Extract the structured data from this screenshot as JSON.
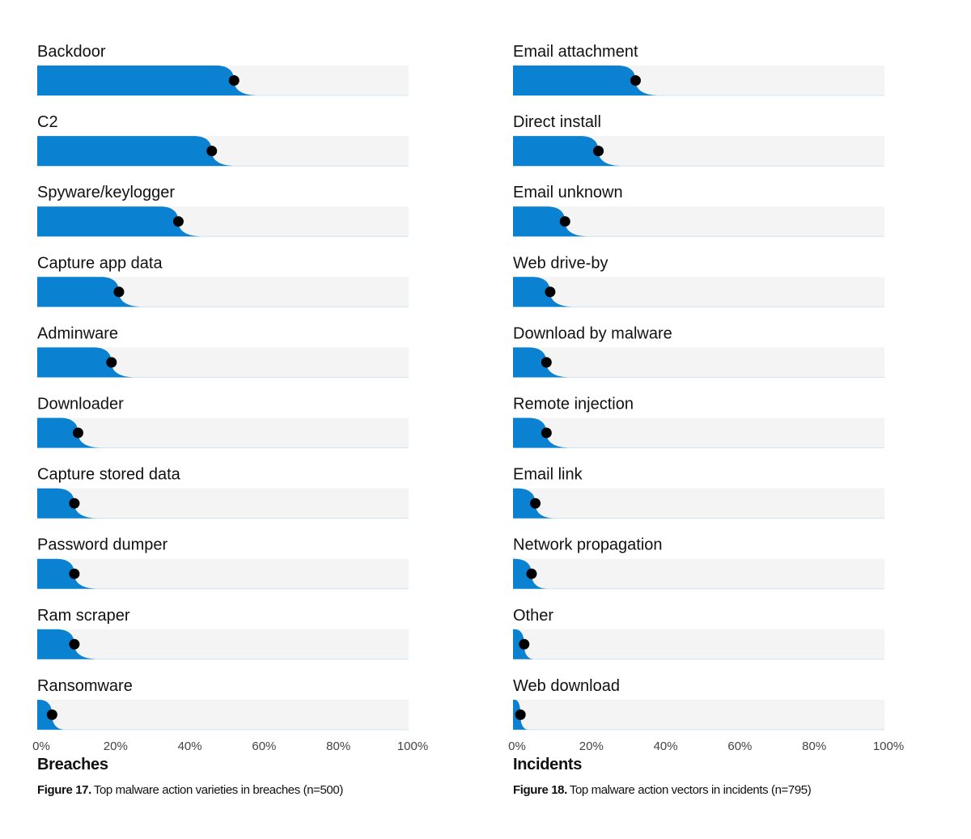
{
  "charts": {
    "left": {
      "xlabel": "Breaches",
      "caption_figure": "Figure 17.",
      "caption_text": "Top malware action varieties in breaches (n=500)"
    },
    "right": {
      "xlabel": "Incidents",
      "caption_figure": "Figure 18.",
      "caption_text": "Top malware action vectors in incidents (n=795)"
    }
  },
  "chart_data": [
    {
      "type": "bar",
      "orientation": "horizontal",
      "title": "",
      "xlabel": "Breaches",
      "xlim": [
        0,
        100
      ],
      "x_tick_labels": [
        "0%",
        "20%",
        "40%",
        "60%",
        "80%",
        "100%"
      ],
      "categories": [
        "Backdoor",
        "C2",
        "Spyware/keylogger",
        "Capture app data",
        "Adminware",
        "Downloader",
        "Capture stored data",
        "Password dumper",
        "Ram scraper",
        "Ransomware"
      ],
      "values": [
        53,
        47,
        38,
        22,
        20,
        11,
        10,
        10,
        10,
        4
      ],
      "colors": {
        "bar": "#0a82d1",
        "track": "#f4f4f4",
        "point": "#000000"
      }
    },
    {
      "type": "bar",
      "orientation": "horizontal",
      "title": "",
      "xlabel": "Incidents",
      "xlim": [
        0,
        100
      ],
      "x_tick_labels": [
        "0%",
        "20%",
        "40%",
        "60%",
        "80%",
        "100%"
      ],
      "categories": [
        "Email attachment",
        "Direct install",
        "Email unknown",
        "Web drive-by",
        "Download by malware",
        "Remote injection",
        "Email link",
        "Network propagation",
        "Other",
        "Web download"
      ],
      "values": [
        33,
        23,
        14,
        10,
        9,
        9,
        6,
        5,
        3,
        2
      ],
      "colors": {
        "bar": "#0a82d1",
        "track": "#f4f4f4",
        "point": "#000000"
      }
    }
  ]
}
